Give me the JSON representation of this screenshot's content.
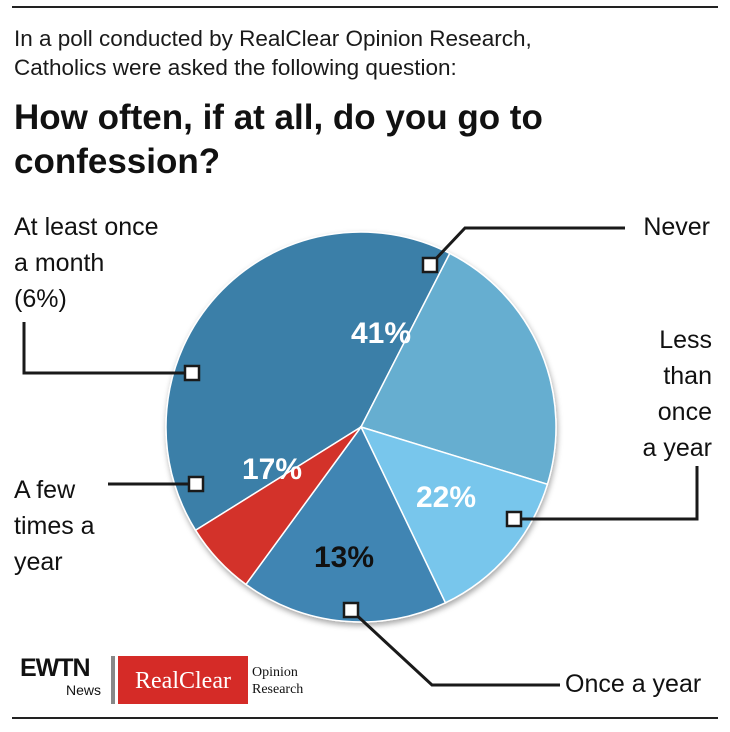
{
  "header": {
    "intro_line1": "In a poll conducted by RealClear Opinion Research,",
    "intro_line2": "Catholics were asked the following question:",
    "question_line1": "How often, if at all, do you go to",
    "question_line2": "confession?"
  },
  "chart_data": {
    "type": "pie",
    "title": "How often, if at all, do you go to confession?",
    "slices": [
      {
        "key": "never",
        "label": "Never",
        "value": 41,
        "display": "41%",
        "color": "#3a7fa8"
      },
      {
        "key": "less",
        "label": "Less than once a year",
        "value": 22,
        "display": "22%",
        "color": "#66aed0"
      },
      {
        "key": "once",
        "label": "Once a year",
        "value": 13,
        "display": "13%",
        "color": "#78c6ec"
      },
      {
        "key": "few",
        "label": "A few times a year",
        "value": 17,
        "display": "17%",
        "color": "#3f85b3"
      },
      {
        "key": "month",
        "label": "At least once a month (6%)",
        "value": 6,
        "display": "",
        "color": "#d3312c"
      }
    ]
  },
  "labels": {
    "never": "Never",
    "less_1": "Less",
    "less_2": "than",
    "less_3": "once",
    "less_4": "a year",
    "once": "Once a year",
    "few_1": "A few",
    "few_2": "times a",
    "few_3": "year",
    "month_1": "At least once",
    "month_2": "a month",
    "month_3": "(6%)"
  },
  "branding": {
    "ewtn": "EWTN",
    "news": "News",
    "realclear": "RealClear",
    "opinion": "Opinion",
    "research": "Research"
  }
}
